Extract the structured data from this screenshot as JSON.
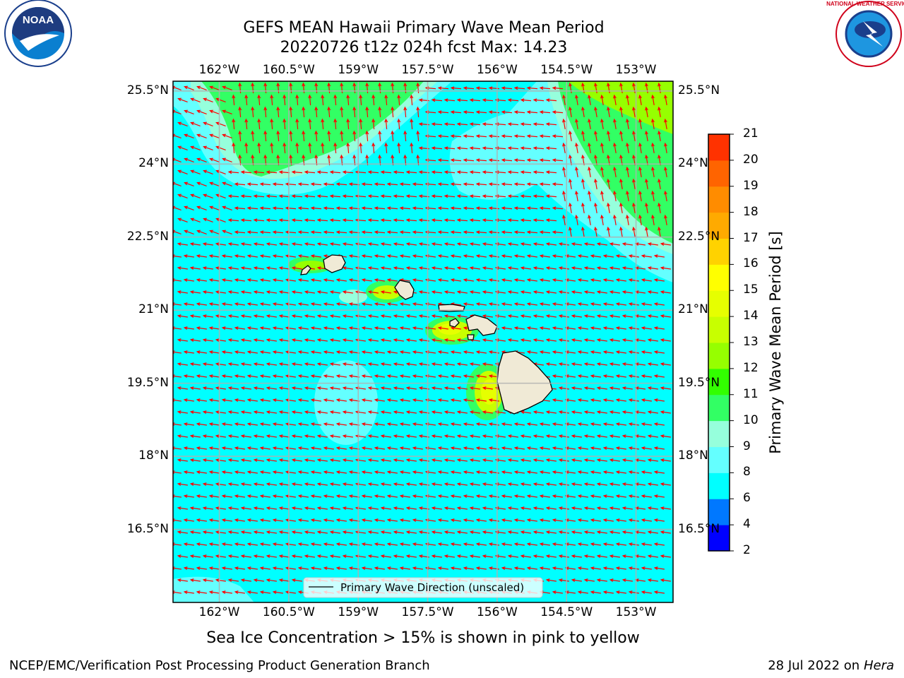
{
  "title": {
    "line1": "GEFS MEAN Hawaii Primary Wave Mean Period",
    "line2": "20220726 t12z 024h fcst   Max: 14.23"
  },
  "map": {
    "lon_ticks": [
      "162°W",
      "160.5°W",
      "159°W",
      "157.5°W",
      "156°W",
      "154.5°W",
      "153°W"
    ],
    "lat_ticks": [
      "25.5°N",
      "24°N",
      "22.5°N",
      "21°N",
      "19.5°N",
      "18°N",
      "16.5°N"
    ],
    "lon_range": [
      -163,
      -152.2
    ],
    "lat_range": [
      15,
      25.7
    ],
    "ocean_color": "#00FFFF",
    "arrow_color": "#FF0000",
    "land_color": "#F0EAD6",
    "legend": "Primary Wave Direction (unscaled)",
    "islands": [
      "Niihau/Kauai",
      "Oahu",
      "Molokai",
      "Lanai",
      "Maui",
      "Kahoolawe",
      "Hawaii"
    ]
  },
  "colorbar": {
    "label": "Primary Wave Mean Period [s]",
    "ticks": [
      "2",
      "4",
      "6",
      "8",
      "9",
      "10",
      "11",
      "12",
      "13",
      "14",
      "15",
      "16",
      "17",
      "18",
      "19",
      "20",
      "21"
    ],
    "colors": [
      "#0000FF",
      "#0078FF",
      "#00FFFF",
      "#64FFFF",
      "#96FFDC",
      "#32FF64",
      "#32FF00",
      "#96FF00",
      "#C8FF00",
      "#E6FF00",
      "#FFFF00",
      "#FFD200",
      "#FFAA00",
      "#FF8C00",
      "#FF6400",
      "#FF3200",
      "#FF0000"
    ]
  },
  "note": "Sea Ice Concentration > 15% is shown in pink to yellow",
  "footer": {
    "left": "NCEP/EMC/Verification Post Processing Product Generation Branch",
    "right_date": "28 Jul 2022 on ",
    "right_machine": "Hera"
  },
  "logos": {
    "left_text": "NOAA",
    "right_text": "NATIONAL WEATHER SERVICE"
  }
}
